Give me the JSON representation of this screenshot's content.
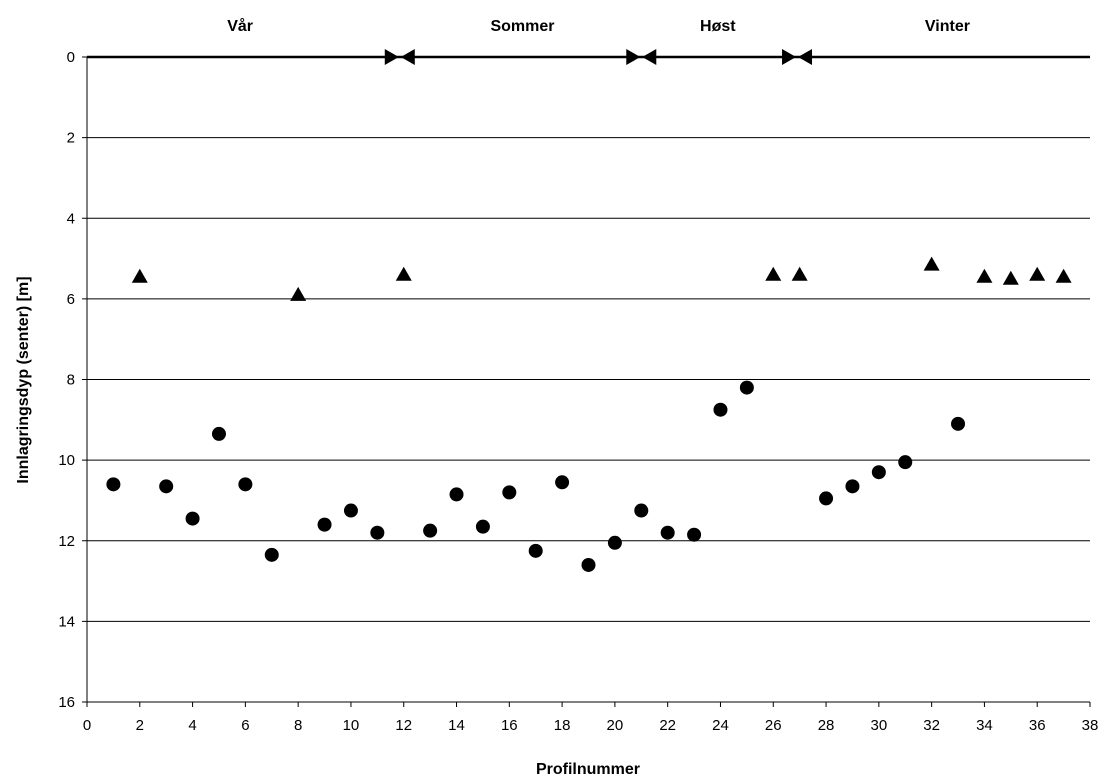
{
  "chart_data": {
    "type": "scatter",
    "title": "",
    "xlabel": "Profilnummer",
    "ylabel": "Innlagringsdyp (senter) [m]",
    "xlim": [
      0,
      38
    ],
    "ylim": [
      0,
      16
    ],
    "y_inverted": true,
    "x_ticks": [
      0,
      2,
      4,
      6,
      8,
      10,
      12,
      14,
      16,
      18,
      20,
      22,
      24,
      26,
      28,
      30,
      32,
      34,
      36,
      38
    ],
    "y_ticks": [
      0,
      2,
      4,
      6,
      8,
      10,
      12,
      14,
      16
    ],
    "grid": "horizontal",
    "series": [
      {
        "marker": "circle",
        "color": "#000000",
        "points": [
          [
            1,
            10.6
          ],
          [
            3,
            10.65
          ],
          [
            4,
            11.45
          ],
          [
            5,
            9.35
          ],
          [
            6,
            10.6
          ],
          [
            7,
            12.35
          ],
          [
            9,
            11.6
          ],
          [
            10,
            11.25
          ],
          [
            11,
            11.8
          ],
          [
            13,
            11.75
          ],
          [
            14,
            10.85
          ],
          [
            15,
            11.65
          ],
          [
            16,
            10.8
          ],
          [
            17,
            12.25
          ],
          [
            18,
            10.55
          ],
          [
            19,
            12.6
          ],
          [
            20,
            12.05
          ],
          [
            21,
            11.25
          ],
          [
            22,
            11.8
          ],
          [
            23,
            11.85
          ],
          [
            24,
            8.75
          ],
          [
            25,
            8.2
          ],
          [
            28,
            10.95
          ],
          [
            29,
            10.65
          ],
          [
            30,
            10.3
          ],
          [
            31,
            10.05
          ],
          [
            33,
            9.1
          ]
        ]
      },
      {
        "marker": "triangle",
        "color": "#000000",
        "points": [
          [
            2,
            5.45
          ],
          [
            8,
            5.9
          ],
          [
            12,
            5.4
          ],
          [
            26,
            5.4
          ],
          [
            27,
            5.4
          ],
          [
            32,
            5.15
          ],
          [
            34,
            5.45
          ],
          [
            35,
            5.5
          ],
          [
            36,
            5.4
          ],
          [
            37,
            5.45
          ]
        ]
      }
    ],
    "annotations": {
      "seasons": [
        {
          "label": "Vår",
          "x_center": 5.8
        },
        {
          "label": "Sommer",
          "x_center": 16.5
        },
        {
          "label": "Høst",
          "x_center": 23.9
        },
        {
          "label": "Vinter",
          "x_center": 32.6
        }
      ],
      "season_boundaries": [
        11.85,
        21.0,
        26.9
      ],
      "season_line_y": 0
    }
  }
}
